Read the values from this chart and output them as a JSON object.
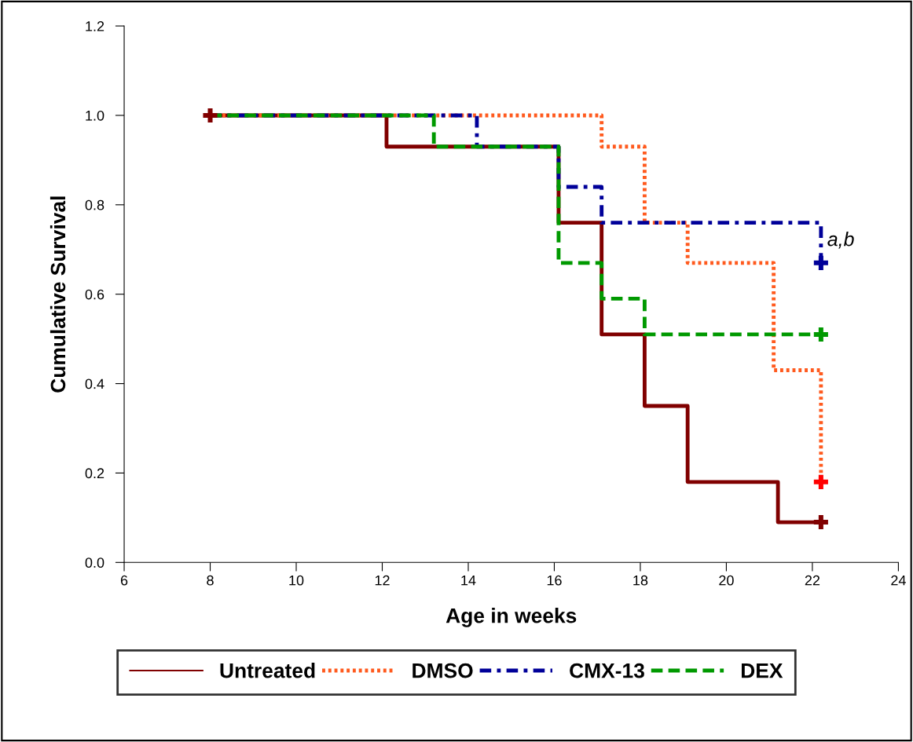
{
  "chart_data": {
    "type": "step",
    "xlabel": "Age in weeks",
    "ylabel": "Cumulative Survival",
    "xlim": [
      6,
      24
    ],
    "xticks": [
      6,
      8,
      10,
      12,
      14,
      16,
      18,
      20,
      22,
      24
    ],
    "ylim": [
      0,
      1.2
    ],
    "yticks": [
      {
        "value": 0,
        "label": "0.0"
      },
      {
        "value": 0.2,
        "label": "0.2"
      },
      {
        "value": 0.4,
        "label": "0.4"
      },
      {
        "value": 0.6,
        "label": "0.6"
      },
      {
        "value": 0.8,
        "label": "0.8"
      },
      {
        "value": 1.0,
        "label": "1.0"
      },
      {
        "value": 1.2,
        "label": "1.2"
      }
    ],
    "grid": false,
    "legend": "bottom",
    "series": [
      {
        "name": "Untreated",
        "color": "#800000",
        "line_style": "solid",
        "x": [
          8,
          12.1,
          16.1,
          17.1,
          18.1,
          19.1,
          21.2,
          22.2
        ],
        "values": [
          1.0,
          0.93,
          0.76,
          0.51,
          0.35,
          0.18,
          0.09,
          0.09
        ]
      },
      {
        "name": "DMSO",
        "color": "#ff5a1e",
        "line_style": "dotted",
        "x": [
          8,
          17.1,
          18.1,
          19.1,
          21.1,
          22.2
        ],
        "values": [
          1.0,
          0.93,
          0.76,
          0.67,
          0.43,
          0.18
        ]
      },
      {
        "name": "CMX-13",
        "color": "#000099",
        "line_style": "dashdot",
        "x": [
          8,
          14.2,
          16.1,
          17.1,
          22.2
        ],
        "values": [
          1.0,
          0.93,
          0.84,
          0.76,
          0.67
        ]
      },
      {
        "name": "DEX",
        "color": "#009900",
        "line_style": "dashed",
        "x": [
          8,
          13.2,
          16.1,
          17.1,
          18.1,
          22.2
        ],
        "values": [
          1.0,
          0.93,
          0.67,
          0.59,
          0.51,
          0.51
        ]
      },
      {
        "type": "scatter",
        "marker": "cross",
        "x": [
          8,
          22.2,
          22.2,
          22.2,
          22.2
        ],
        "values": [
          1.0,
          0.09,
          0.18,
          0.67,
          0.51
        ],
        "colors": [
          "#800000",
          "#800000",
          "#ff0000",
          "#000099",
          "#009900"
        ]
      }
    ],
    "annotations": [
      "a,b"
    ]
  }
}
